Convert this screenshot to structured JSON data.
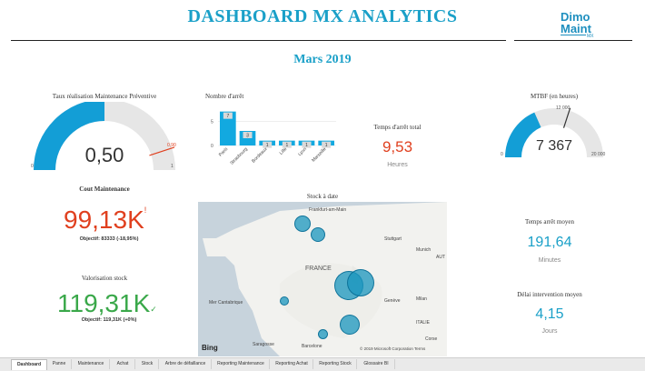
{
  "header": {
    "title": "DASHBOARD MX ANALYTICS",
    "period": "Mars 2019",
    "logo_line1": "Dimo",
    "logo_line2": "Maint",
    "logo_suffix": "MX"
  },
  "gauge_preventive": {
    "title": "Taux réalisation Maintenance Préventive",
    "value": "0,50",
    "min": "0",
    "max": "1",
    "target": "0,90",
    "fraction": 0.5,
    "target_fraction": 0.9
  },
  "cout_maintenance": {
    "title": "Cout Maintenance",
    "value": "99,13K",
    "mark": "!",
    "objectif": "Objectif: 83333 (-18,95%)"
  },
  "valorisation_stock": {
    "title": "Valorisation stock",
    "value": "119,31K",
    "mark": "✓",
    "objectif": "Objectif: 119,31K (+0%)"
  },
  "nombre_arret": {
    "title": "Nombre d'arrêt",
    "y_ticks": [
      "0",
      "5"
    ]
  },
  "chart_data": {
    "type": "bar",
    "categories": [
      "Paris",
      "Strasbourg",
      "Bordeaux",
      "Lille",
      "Lyon",
      "Marseille"
    ],
    "values": [
      7,
      3,
      1,
      1,
      1,
      1
    ],
    "ylim": [
      0,
      7.5
    ],
    "color": "#12a9e0"
  },
  "temps_arret_total": {
    "title": "Temps d'arrêt total",
    "value": "9,53",
    "unit": "Heures"
  },
  "mtbf": {
    "title": "MTBF (en heures)",
    "value": "7 367",
    "min": "0",
    "max": "20 000",
    "target": "12 000",
    "fraction": 0.368,
    "target_fraction": 0.6
  },
  "stock": {
    "title": "Stock à date",
    "attribution": "© 2019 Microsoft Corporation Terms",
    "bing": "Bing",
    "places": {
      "frankfurt": "Frankfurt-am-Main",
      "stuttgart": "Stuttgart",
      "munich": "Munich",
      "aut": "AUT",
      "france": "FRANCE",
      "geneve": "Genève",
      "milan": "Milan",
      "mer": "Mer Cantabrique",
      "italie": "ITALIE",
      "saragosse": "Saragosse",
      "barcelone": "Barcelone",
      "corse": "Corse"
    }
  },
  "temps_arret_moyen": {
    "title": "Temps arrêt moyen",
    "value": "191,64",
    "unit": "Minutes"
  },
  "delai_intervention": {
    "title": "Délai intervention moyen",
    "value": "4,15",
    "unit": "Jours"
  },
  "tabs": [
    "Dashboard",
    "Panne",
    "Maintenance",
    "Achat",
    "Stock",
    "Arbre de défaillance",
    "Reporting Maintenance",
    "Reporting Achat",
    "Reporting Stock",
    "Glossaire BI"
  ],
  "colors": {
    "accent": "#1aa0c8",
    "gauge_fill": "#139ed6",
    "gauge_track": "#e6e6e6",
    "target": "#e0401f",
    "positive": "#3aa84a"
  }
}
